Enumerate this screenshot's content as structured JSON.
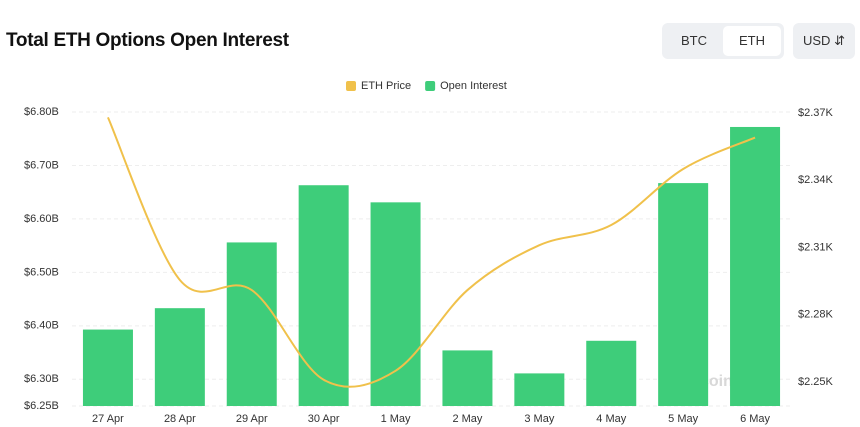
{
  "header": {
    "title": "Total ETH Options Open Interest",
    "toggle": [
      "BTC",
      "ETH"
    ],
    "currency": "USD"
  },
  "chart_data": {
    "type": "bar-line",
    "categories": [
      "27 Apr",
      "28 Apr",
      "29 Apr",
      "30 Apr",
      "1 May",
      "2 May",
      "3 May",
      "4 May",
      "5 May",
      "6 May"
    ],
    "series": [
      {
        "name": "ETH Price",
        "type": "line",
        "axis": "y2",
        "color": "#f0c14b",
        "values": [
          2.368,
          2.2955,
          2.291,
          2.251,
          2.255,
          2.291,
          2.311,
          2.32,
          2.345,
          2.359
        ]
      },
      {
        "name": "Open Interest",
        "type": "bar",
        "color": "#3ecd7a",
        "values": [
          6.393,
          6.433,
          6.556,
          6.663,
          6.631,
          6.354,
          6.311,
          6.372,
          6.667,
          6.772
        ]
      }
    ],
    "ylim": [
      6.25,
      6.8
    ],
    "yticks": [
      {
        "value": 6.25,
        "label": "$6.25B"
      },
      {
        "value": 6.3,
        "label": "$6.30B"
      },
      {
        "value": 6.4,
        "label": "$6.40B"
      },
      {
        "value": 6.5,
        "label": "$6.50B"
      },
      {
        "value": 6.6,
        "label": "$6.60B"
      },
      {
        "value": 6.7,
        "label": "$6.70B"
      },
      {
        "value": 6.8,
        "label": "$6.80B"
      }
    ],
    "y2lim": [
      2.2393,
      2.3704
    ],
    "y2ticks": [
      {
        "value": 2.25,
        "label": "$2.25K"
      },
      {
        "value": 2.28,
        "label": "$2.28K"
      },
      {
        "value": 2.31,
        "label": "$2.31K"
      },
      {
        "value": 2.34,
        "label": "$2.34K"
      },
      {
        "value": 2.37,
        "label": "$2.37K"
      }
    ],
    "grid": true,
    "legend": "top",
    "watermark": "coinglass"
  }
}
